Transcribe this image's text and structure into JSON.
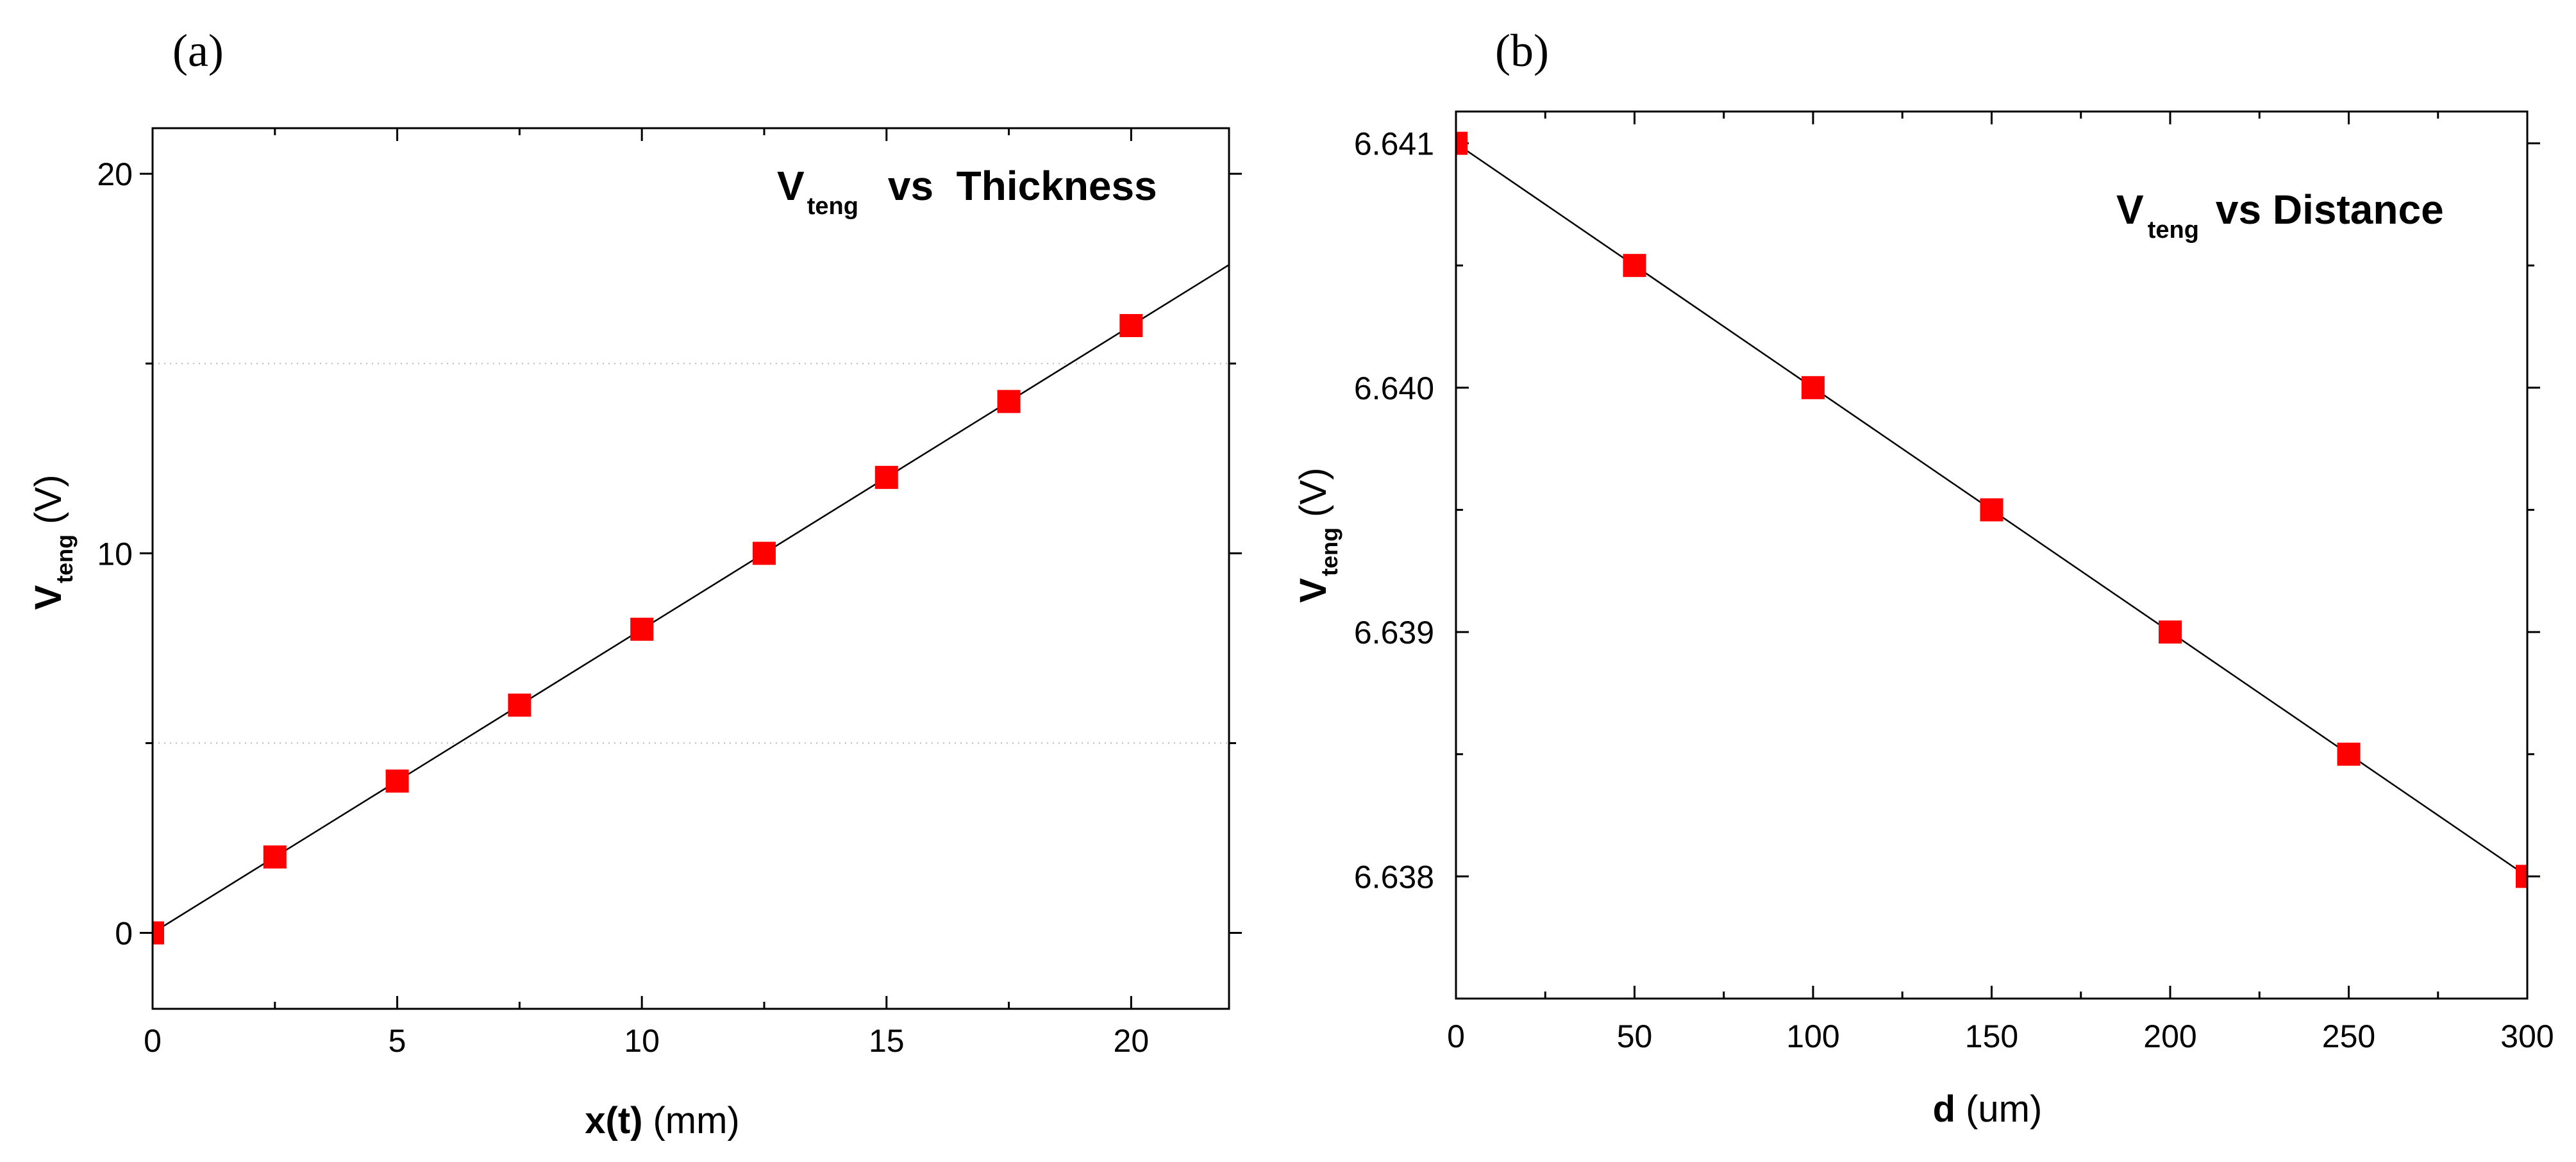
{
  "chart_data": [
    {
      "type": "line",
      "panel_label": "(a)",
      "title": {
        "main": "V",
        "sub": "teng",
        "rest": "vs  Thickness"
      },
      "xlabel": {
        "main": "x(t)",
        "unit": "(mm)"
      },
      "ylabel": {
        "main": "V",
        "sub": "teng",
        "unit": "(V)"
      },
      "xlim": [
        0,
        22
      ],
      "ylim": [
        -2,
        21.2
      ],
      "x_ticks": [
        0,
        5,
        10,
        15,
        20
      ],
      "x_tick_labels": [
        "0",
        "5",
        "10",
        "15",
        "20"
      ],
      "x_minor_ticks": [
        2.5,
        7.5,
        12.5,
        17.5
      ],
      "y_ticks": [
        0,
        10,
        20
      ],
      "y_tick_labels": [
        "0",
        "10",
        "20"
      ],
      "y_minor_ticks": [
        5,
        15
      ],
      "grid_y": [
        5,
        15
      ],
      "series": [
        {
          "color": "#ff0000",
          "x": [
            0,
            2.5,
            5,
            7.5,
            10,
            12.5,
            15,
            17.5,
            20
          ],
          "y": [
            0,
            2,
            4,
            6,
            8,
            10,
            12,
            14,
            16
          ]
        }
      ],
      "fit_line": {
        "x": [
          0,
          22
        ],
        "y": [
          0,
          17.6
        ],
        "color": "#000000"
      }
    },
    {
      "type": "line",
      "panel_label": "(b)",
      "title": {
        "main": "V",
        "sub": "teng",
        "rest": "vs Distance"
      },
      "xlabel": {
        "main": "d",
        "unit": "(um)"
      },
      "ylabel": {
        "main": "V",
        "sub": "teng",
        "unit": "(V)"
      },
      "xlim": [
        0,
        300
      ],
      "ylim": [
        6.6375,
        6.64113
      ],
      "x_ticks": [
        0,
        50,
        100,
        150,
        200,
        250,
        300
      ],
      "x_tick_labels": [
        "0",
        "50",
        "100",
        "150",
        "200",
        "250",
        "300"
      ],
      "x_minor_ticks": [
        25,
        75,
        125,
        175,
        225,
        275
      ],
      "y_ticks": [
        6.638,
        6.639,
        6.64,
        6.641
      ],
      "y_tick_labels": [
        "6.638",
        "6.639",
        "6.640",
        "6.641"
      ],
      "y_minor_ticks": [
        6.6385,
        6.6395,
        6.6405
      ],
      "grid_y": [],
      "series": [
        {
          "color": "#ff0000",
          "x": [
            0,
            50,
            100,
            150,
            200,
            250,
            300
          ],
          "y": [
            6.641,
            6.6405,
            6.64,
            6.6395,
            6.639,
            6.6385,
            6.638
          ]
        }
      ],
      "fit_line": {
        "x": [
          0,
          300
        ],
        "y": [
          6.641,
          6.638
        ],
        "color": "#000000"
      }
    }
  ]
}
